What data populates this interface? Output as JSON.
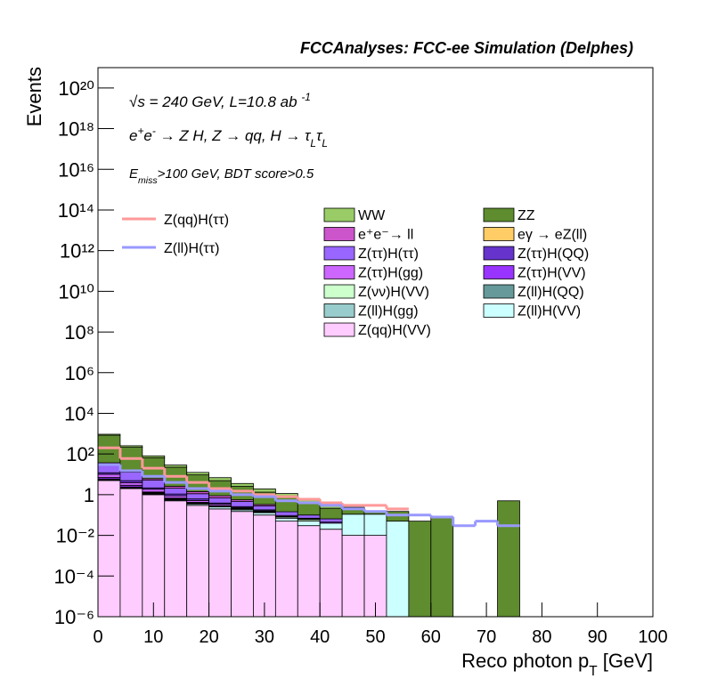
{
  "chart_data": {
    "type": "stacked-histogram",
    "title": "FCCAnalyses: FCC-ee Simulation (Delphes)",
    "y_label": "Events",
    "x_label": [
      {
        "text": "Reco photon p"
      },
      {
        "text": "T",
        "shift": "sub"
      },
      {
        "text": " [GeV]"
      }
    ],
    "annotations": [
      [
        {
          "text": "√s = 240 GeV, L=10.8 ab "
        },
        {
          "text": "-1",
          "shift": "super"
        }
      ],
      [
        {
          "text": "e"
        },
        {
          "text": "+",
          "shift": "super"
        },
        {
          "text": "e"
        },
        {
          "text": "-",
          "shift": "super"
        },
        {
          "text": " → Z H, Z  → qq, H  → τ"
        },
        {
          "text": "L",
          "shift": "sub"
        },
        {
          "text": "τ"
        },
        {
          "text": "L",
          "shift": "sub"
        }
      ],
      [
        {
          "text": "E"
        },
        {
          "text": "miss",
          "shift": "sub"
        },
        {
          "text": ">100 GeV, BDT score>0.5"
        }
      ]
    ],
    "log_y": true,
    "xlim": [
      0,
      100
    ],
    "ylim": [
      1e-06,
      1e+21
    ],
    "xticks": [
      0,
      10,
      20,
      30,
      40,
      50,
      60,
      70,
      80,
      90,
      100
    ],
    "yticks": [
      {
        "value": 1e-06,
        "label": "10⁻⁶"
      },
      {
        "value": 0.0001,
        "label": "10⁻⁴"
      },
      {
        "value": 0.01,
        "label": "10⁻²"
      },
      1,
      {
        "value": 100,
        "label": "10²"
      },
      {
        "value": 10000.0,
        "label": "10⁴"
      },
      {
        "value": 1000000.0,
        "label": "10⁶"
      },
      {
        "value": 100000000.0,
        "label": "10⁸"
      },
      {
        "value": 10000000000.0,
        "label": "10¹⁰"
      },
      {
        "value": 1000000000000.0,
        "label": "10¹²"
      },
      {
        "value": 100000000000000.0,
        "label": "10¹⁴"
      },
      {
        "value": 1e+16,
        "label": "10¹⁶"
      },
      {
        "value": 1e+18,
        "label": "10¹⁸"
      },
      {
        "value": 1e+20,
        "label": "10²⁰"
      }
    ],
    "bins": [
      0,
      4,
      8,
      12,
      16,
      20,
      24,
      28,
      32,
      36,
      40,
      44,
      48,
      52,
      56,
      60,
      64,
      68,
      72,
      76
    ],
    "series": [
      {
        "name": "Z(qq)H(VV)",
        "color": "#ffccff",
        "values": [
          5,
          2,
          1,
          0.5,
          0.3,
          0.2,
          0.15,
          0.1,
          0.05,
          0.03,
          0.02,
          0.01,
          0.01,
          0,
          0,
          0,
          0,
          0,
          0
        ]
      },
      {
        "name": "Z(ll)H(VV)",
        "color": "#ccffff",
        "values": [
          0.2,
          0.1,
          0.1,
          0.05,
          0.05,
          0.05,
          0.03,
          0.03,
          0.02,
          0.02,
          0.02,
          0.1,
          0.1,
          0.05,
          0,
          0,
          0,
          0,
          0
        ]
      },
      {
        "name": "Z(ll)H(gg)",
        "color": "#99cccc",
        "values": [
          0.01,
          0.01,
          0.01,
          0.01,
          0,
          0,
          0,
          0,
          0,
          0,
          0,
          0,
          0,
          0,
          0,
          0,
          0,
          0,
          0
        ]
      },
      {
        "name": "Z(ll)H(QQ)",
        "color": "#669999",
        "values": [
          0.3,
          0.1,
          0.05,
          0.02,
          0.01,
          0,
          0,
          0,
          0,
          0,
          0,
          0,
          0,
          0,
          0,
          0,
          0,
          0,
          0
        ]
      },
      {
        "name": "Z(νν)H(VV)",
        "color": "#ccffcc",
        "values": [
          0.5,
          0.2,
          0.1,
          0.05,
          0.03,
          0.02,
          0.02,
          0.01,
          0.01,
          0.01,
          0,
          0,
          0,
          0,
          0,
          0,
          0,
          0,
          0
        ]
      },
      {
        "name": "Z(ττ)H(VV)",
        "color": "#9933ff",
        "values": [
          1,
          0.5,
          0.1,
          0.05,
          0.03,
          0.02,
          0.01,
          0.01,
          0.005,
          0.005,
          0.005,
          0,
          0,
          0,
          0,
          0,
          0,
          0,
          0
        ]
      },
      {
        "name": "Z(ττ)H(gg)",
        "color": "#cc66ff",
        "values": [
          3,
          1,
          0.5,
          0.2,
          0.1,
          0.05,
          0.02,
          0.01,
          0.01,
          0.005,
          0,
          0,
          0,
          0,
          0,
          0,
          0,
          0,
          0
        ]
      },
      {
        "name": "Z(ττ)H(QQ)",
        "color": "#6633cc",
        "values": [
          2,
          1,
          0.3,
          0.2,
          0.1,
          0.05,
          0.03,
          0.02,
          0,
          0,
          0,
          0,
          0,
          0,
          0,
          0,
          0,
          0,
          0
        ]
      },
      {
        "name": "Z(ττ)H(ττ)",
        "color": "#9966ff",
        "values": [
          20,
          8,
          3,
          1,
          0.5,
          0.3,
          0.2,
          0.1,
          0.05,
          0.03,
          0.02,
          0,
          0,
          0,
          0,
          0,
          0,
          0,
          0
        ]
      },
      {
        "name": "eγ → eZ(ll)",
        "color": "#ffcc66",
        "values": [
          0.01,
          0,
          0,
          0,
          0,
          0,
          0,
          0,
          0,
          0,
          0,
          0,
          0,
          0,
          0,
          0,
          0,
          0,
          0
        ]
      },
      {
        "name": "e⁺e⁻→ ll",
        "color": "#cc55cc",
        "values": [
          5,
          2,
          1,
          0.5,
          0.3,
          0.2,
          0.1,
          0.05,
          0,
          0,
          0,
          0,
          0,
          0,
          0,
          0,
          0,
          0,
          0
        ]
      },
      {
        "name": "ZZ",
        "color": "#5e8c2e",
        "values": [
          800,
          200,
          60,
          20,
          8,
          4,
          2,
          1,
          0.6,
          0.3,
          0.15,
          0.08,
          0.05,
          0.1,
          0.05,
          0.08,
          0,
          0,
          0.5
        ]
      },
      {
        "name": "WW",
        "color": "#99cc66",
        "values": [
          100,
          40,
          15,
          6,
          3,
          2,
          1,
          0.6,
          0.4,
          0.2,
          0.1,
          0.05,
          0,
          0,
          0,
          0,
          0,
          0,
          0
        ]
      }
    ],
    "lines": [
      {
        "name": "Z(qq)H(ττ)",
        "color": "#ff9999",
        "values": [
          200,
          60,
          20,
          8,
          4,
          2,
          1.5,
          1,
          0.8,
          0.6,
          0.4,
          0.3,
          0.3,
          0.2,
          null,
          null,
          null,
          null,
          null
        ]
      },
      {
        "name": "Z(ll)H(ττ)",
        "color": "#9999ff",
        "values": [
          30,
          15,
          8,
          4,
          2,
          1.5,
          1,
          0.8,
          0.5,
          0.4,
          0.3,
          0.2,
          0.15,
          0.1,
          0.1,
          0.08,
          0.03,
          0.05,
          0.03
        ]
      }
    ]
  }
}
